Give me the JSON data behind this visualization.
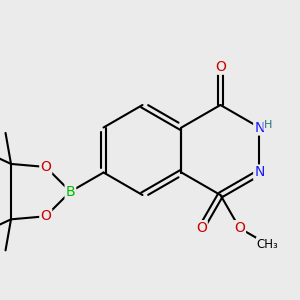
{
  "bg_color": "#ebebeb",
  "bond_color": "#000000",
  "bond_width": 1.5,
  "atom_colors": {
    "C": "#000000",
    "N": "#1a1aff",
    "O": "#cc0000",
    "B": "#00bb00",
    "H": "#227777"
  },
  "font_size": 9,
  "figsize": [
    3.0,
    3.0
  ],
  "dpi": 100,
  "scale": 0.075,
  "ox": 0.475,
  "oy": 0.5
}
